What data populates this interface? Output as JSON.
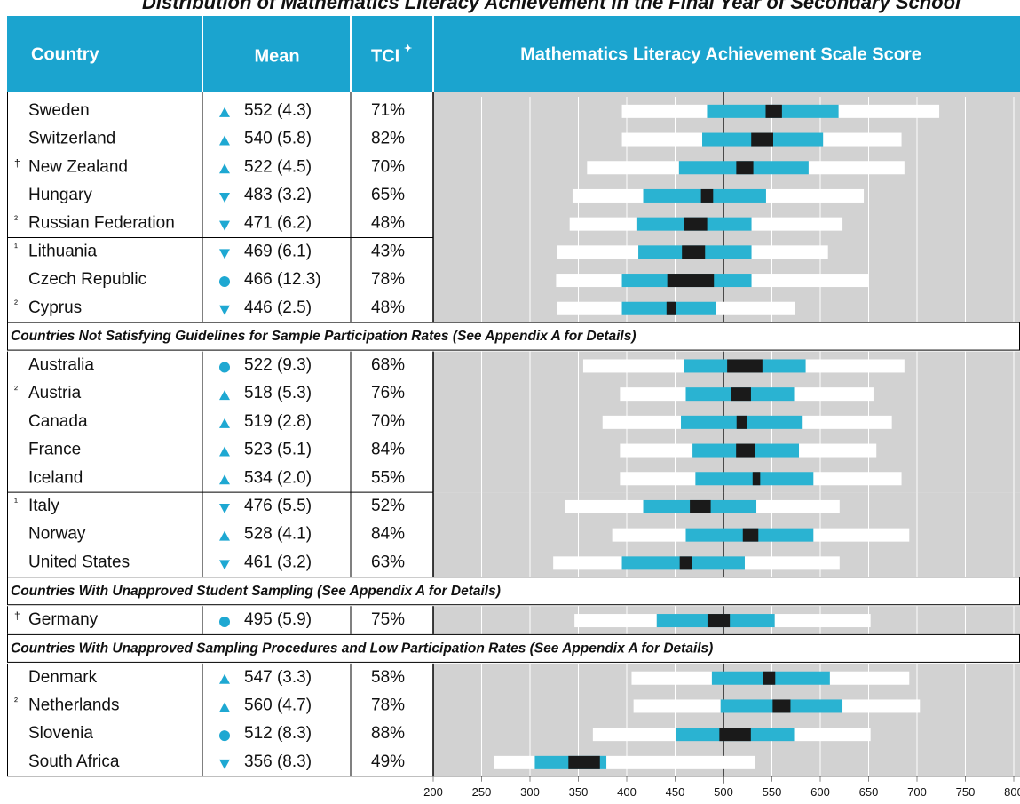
{
  "header": {
    "title": "Distribution of Mathematics Literacy Achievement in the Final Year of Secondary School",
    "columns": [
      "Country",
      "Mean",
      "TCI"
    ],
    "tci_mark": "✦",
    "chart_title": "Mathematics Literacy Achievement Scale Score"
  },
  "chart_data": {
    "type": "percentile-bar",
    "xlim": [
      200,
      800
    ],
    "xticks": [
      200,
      250,
      300,
      350,
      400,
      450,
      500,
      550,
      600,
      650,
      700,
      750,
      800
    ],
    "reference": 500,
    "colors": {
      "outer": "#ffffff",
      "inner": "#2ab3d2",
      "ci": "#1a1a1a",
      "marker": "#1ea8d2",
      "background": "#d2d2d2",
      "header": "#1ba4cf"
    },
    "sections": [
      {
        "rows": [
          {
            "country": "Sweden",
            "marker": "up",
            "mean_label": "552 (4.3)",
            "mean": 552,
            "se": 4.3,
            "tci": "71%",
            "p5": 395,
            "p25": 483,
            "p75": 619,
            "p95": 723
          },
          {
            "country": "Switzerland",
            "marker": "up",
            "mean_label": "540 (5.8)",
            "mean": 540,
            "se": 5.8,
            "tci": "82%",
            "p5": 395,
            "p25": 478,
            "p75": 603,
            "p95": 684
          },
          {
            "note": "†",
            "country": "New Zealand",
            "marker": "up",
            "mean_label": "522 (4.5)",
            "mean": 522,
            "se": 4.5,
            "tci": "70%",
            "p5": 359,
            "p25": 454,
            "p75": 588,
            "p95": 687
          },
          {
            "country": "Hungary",
            "marker": "down",
            "mean_label": "483 (3.2)",
            "mean": 483,
            "se": 3.2,
            "tci": "65%",
            "p5": 344,
            "p25": 417,
            "p75": 544,
            "p95": 645
          },
          {
            "note": "²",
            "country": "Russian Federation",
            "marker": "down",
            "mean_label": "471 (6.2)",
            "mean": 471,
            "se": 6.2,
            "tci": "48%",
            "p5": 341,
            "p25": 410,
            "p75": 529,
            "p95": 623
          }
        ]
      },
      {
        "rows": [
          {
            "note": "¹",
            "country": "Lithuania",
            "marker": "down",
            "mean_label": "469 (6.1)",
            "mean": 469,
            "se": 6.1,
            "tci": "43%",
            "p5": 328,
            "p25": 412,
            "p75": 529,
            "p95": 608
          },
          {
            "country": "Czech Republic",
            "marker": "circle",
            "mean_label": "466 (12.3)",
            "mean": 466,
            "se": 12.3,
            "tci": "78%",
            "p5": 327,
            "p25": 395,
            "p75": 529,
            "p95": 650
          },
          {
            "note": "²",
            "country": "Cyprus",
            "marker": "down",
            "mean_label": "446 (2.5)",
            "mean": 446,
            "se": 2.5,
            "tci": "48%",
            "p5": 328,
            "p25": 395,
            "p75": 492,
            "p95": 574
          }
        ]
      },
      {
        "heading": "Countries Not Satisfying Guidelines for Sample Participation Rates (See Appendix A for Details)",
        "rows": [
          {
            "country": "Australia",
            "marker": "circle",
            "mean_label": "522 (9.3)",
            "mean": 522,
            "se": 9.3,
            "tci": "68%",
            "p5": 355,
            "p25": 459,
            "p75": 585,
            "p95": 687
          },
          {
            "note": "²",
            "country": "Austria",
            "marker": "up",
            "mean_label": "518 (5.3)",
            "mean": 518,
            "se": 5.3,
            "tci": "76%",
            "p5": 393,
            "p25": 461,
            "p75": 573,
            "p95": 655
          },
          {
            "country": "Canada",
            "marker": "up",
            "mean_label": "519 (2.8)",
            "mean": 519,
            "se": 2.8,
            "tci": "70%",
            "p5": 375,
            "p25": 456,
            "p75": 581,
            "p95": 674
          },
          {
            "country": "France",
            "marker": "up",
            "mean_label": "523 (5.1)",
            "mean": 523,
            "se": 5.1,
            "tci": "84%",
            "p5": 393,
            "p25": 468,
            "p75": 578,
            "p95": 658
          },
          {
            "country": "Iceland",
            "marker": "up",
            "mean_label": "534 (2.0)",
            "mean": 534,
            "se": 2.0,
            "tci": "55%",
            "p5": 393,
            "p25": 471,
            "p75": 593,
            "p95": 684
          }
        ]
      },
      {
        "rows": [
          {
            "note": "¹",
            "country": "Italy",
            "marker": "down",
            "mean_label": "476 (5.5)",
            "mean": 476,
            "se": 5.5,
            "tci": "52%",
            "p5": 336,
            "p25": 417,
            "p75": 534,
            "p95": 620
          },
          {
            "country": "Norway",
            "marker": "up",
            "mean_label": "528 (4.1)",
            "mean": 528,
            "se": 4.1,
            "tci": "84%",
            "p5": 385,
            "p25": 461,
            "p75": 593,
            "p95": 692
          },
          {
            "country": "United States",
            "marker": "down",
            "mean_label": "461 (3.2)",
            "mean": 461,
            "se": 3.2,
            "tci": "63%",
            "p5": 324,
            "p25": 395,
            "p75": 522,
            "p95": 620
          }
        ]
      },
      {
        "heading": "Countries With Unapproved Student Sampling (See Appendix A for Details)",
        "rows": [
          {
            "note": "†",
            "country": "Germany",
            "marker": "circle",
            "mean_label": "495 (5.9)",
            "mean": 495,
            "se": 5.9,
            "tci": "75%",
            "p5": 346,
            "p25": 431,
            "p75": 553,
            "p95": 652
          }
        ]
      },
      {
        "heading": "Countries With Unapproved Sampling Procedures and Low Participation Rates (See Appendix A for Details)",
        "rows": [
          {
            "country": "Denmark",
            "marker": "up",
            "mean_label": "547 (3.3)",
            "mean": 547,
            "se": 3.3,
            "tci": "58%",
            "p5": 405,
            "p25": 488,
            "p75": 610,
            "p95": 692
          },
          {
            "note": "²",
            "country": "Netherlands",
            "marker": "up",
            "mean_label": "560 (4.7)",
            "mean": 560,
            "se": 4.7,
            "tci": "78%",
            "p5": 407,
            "p25": 497,
            "p75": 623,
            "p95": 703
          },
          {
            "country": "Slovenia",
            "marker": "circle",
            "mean_label": "512 (8.3)",
            "mean": 512,
            "se": 8.3,
            "tci": "88%",
            "p5": 365,
            "p25": 451,
            "p75": 573,
            "p95": 652
          },
          {
            "country": "South Africa",
            "marker": "down",
            "mean_label": "356 (8.3)",
            "mean": 356,
            "se": 8.3,
            "tci": "49%",
            "p5": 263,
            "p25": 305,
            "p75": 379,
            "p95": 533
          }
        ]
      }
    ]
  }
}
